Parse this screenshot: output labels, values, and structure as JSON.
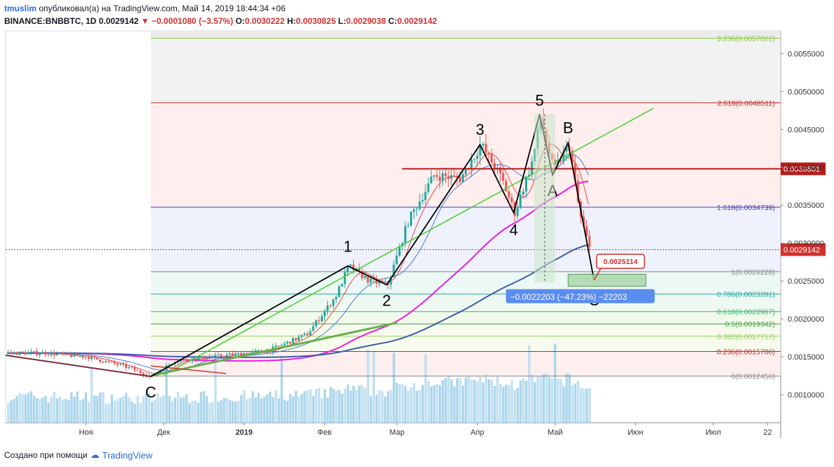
{
  "header": {
    "username": "tmuslim",
    "published_text": "опубликовал(а) на TradingView.com, Май 14, 2019 18:44:34 +06",
    "symbol": "BINANCE:BNBBTC, 1D",
    "last": "0.0029142",
    "change_arrow": "▼",
    "change": "−0.0001080 (−3.57%)",
    "o_label": "O:",
    "o": "0.0030222",
    "h_label": "H:",
    "h": "0.0030825",
    "l_label": "L:",
    "l": "0.0029038",
    "c_label": "C:",
    "c": "0.0029142"
  },
  "footer": {
    "created_with": "Создано при помощи",
    "brand": "TradingView"
  },
  "colors": {
    "up": "#26a69a",
    "down": "#ef5350",
    "ma_pink": "#e91ee0",
    "ma_blue": "#3b5ea8",
    "wave": "#000000",
    "trend_green": "#43d12f",
    "last_price": "#d0312d"
  },
  "chart_data": {
    "type": "candlestick",
    "title": "BINANCE:BNBBTC, 1D",
    "ylim": [
      0.00063,
      0.0058
    ],
    "x_ticks": [
      "Ноя",
      "Дек",
      "2019",
      "Фев",
      "Мар",
      "Апр",
      "Май",
      "Июн",
      "Июл",
      "22"
    ],
    "y_ticks": [
      "0.0055000",
      "0.0050000",
      "0.0045000",
      "0.0040000",
      "0.0035000",
      "0.0030000",
      "0.0025000",
      "0.0020000",
      "0.0015000",
      "0.0010000"
    ],
    "price_close_approx": [
      [
        "2018-10-15",
        0.00155
      ],
      [
        "2018-11-01",
        0.0015
      ],
      [
        "2018-11-15",
        0.00138
      ],
      [
        "2018-11-26",
        0.00124
      ],
      [
        "2018-12-05",
        0.00145
      ],
      [
        "2018-12-20",
        0.0015
      ],
      [
        "2019-01-10",
        0.00158
      ],
      [
        "2019-01-25",
        0.0018
      ],
      [
        "2019-02-05",
        0.0023
      ],
      [
        "2019-02-10",
        0.0027
      ],
      [
        "2019-02-18",
        0.0025
      ],
      [
        "2019-02-25",
        0.00245
      ],
      [
        "2019-03-05",
        0.0033
      ],
      [
        "2019-03-15",
        0.0039
      ],
      [
        "2019-03-25",
        0.00385
      ],
      [
        "2019-04-02",
        0.0043
      ],
      [
        "2019-04-10",
        0.00385
      ],
      [
        "2019-04-15",
        0.0034
      ],
      [
        "2019-04-22",
        0.0041
      ],
      [
        "2019-04-25",
        0.00465
      ],
      [
        "2019-04-30",
        0.00395
      ],
      [
        "2019-05-06",
        0.0043
      ],
      [
        "2019-05-10",
        0.0034
      ],
      [
        "2019-05-14",
        0.00291
      ]
    ],
    "fib_levels": [
      {
        "label": "3.236(0.0057022)",
        "value": 0.0057022,
        "color": "#8bc34a"
      },
      {
        "label": "2.618(0.0048511)",
        "value": 0.0048511,
        "color": "#c62828"
      },
      {
        "label": "1.618(0.0034739)",
        "value": 0.0034739,
        "color": "#3f3fbf"
      },
      {
        "label": "1(0.0026228)",
        "value": 0.0026228,
        "color": "#888888"
      },
      {
        "label": "0.786(0.0023281)",
        "value": 0.0023281,
        "color": "#26a69a"
      },
      {
        "label": "0.618(0.0020967)",
        "value": 0.0020967,
        "color": "#2eb872"
      },
      {
        "label": "0.5(0.0019342)",
        "value": 0.0019342,
        "color": "#43a047"
      },
      {
        "label": "0.382(0.0017717)",
        "value": 0.0017717,
        "color": "#9ccc65"
      },
      {
        "label": "0.236(0.0015706)",
        "value": 0.0015706,
        "color": "#c62828"
      },
      {
        "label": "0(0.0012456)",
        "value": 0.0012456,
        "color": "#888888"
      }
    ],
    "horizontal_line": {
      "value": 0.0039801,
      "label": "0.0039801"
    },
    "last_price": {
      "value": 0.0029142,
      "label": "0.0029142"
    },
    "wave_labels": [
      {
        "text": "C",
        "date": "2018-11-26",
        "price": 0.00124
      },
      {
        "text": "1",
        "date": "2019-02-10",
        "price": 0.0027
      },
      {
        "text": "2",
        "date": "2019-02-25",
        "price": 0.00245
      },
      {
        "text": "3",
        "date": "2019-04-02",
        "price": 0.0043
      },
      {
        "text": "4",
        "date": "2019-04-15",
        "price": 0.0034
      },
      {
        "text": "5",
        "date": "2019-04-25",
        "price": 0.0047
      },
      {
        "text": "A",
        "date": "2019-04-30",
        "price": 0.0039
      },
      {
        "text": "B",
        "date": "2019-05-06",
        "price": 0.00432
      },
      {
        "text": "C",
        "date": "2019-05-16",
        "price": 0.00251
      }
    ],
    "target_label": "0.0025114",
    "measure_label": "−0.0022203 (−47.23%) −22203"
  }
}
